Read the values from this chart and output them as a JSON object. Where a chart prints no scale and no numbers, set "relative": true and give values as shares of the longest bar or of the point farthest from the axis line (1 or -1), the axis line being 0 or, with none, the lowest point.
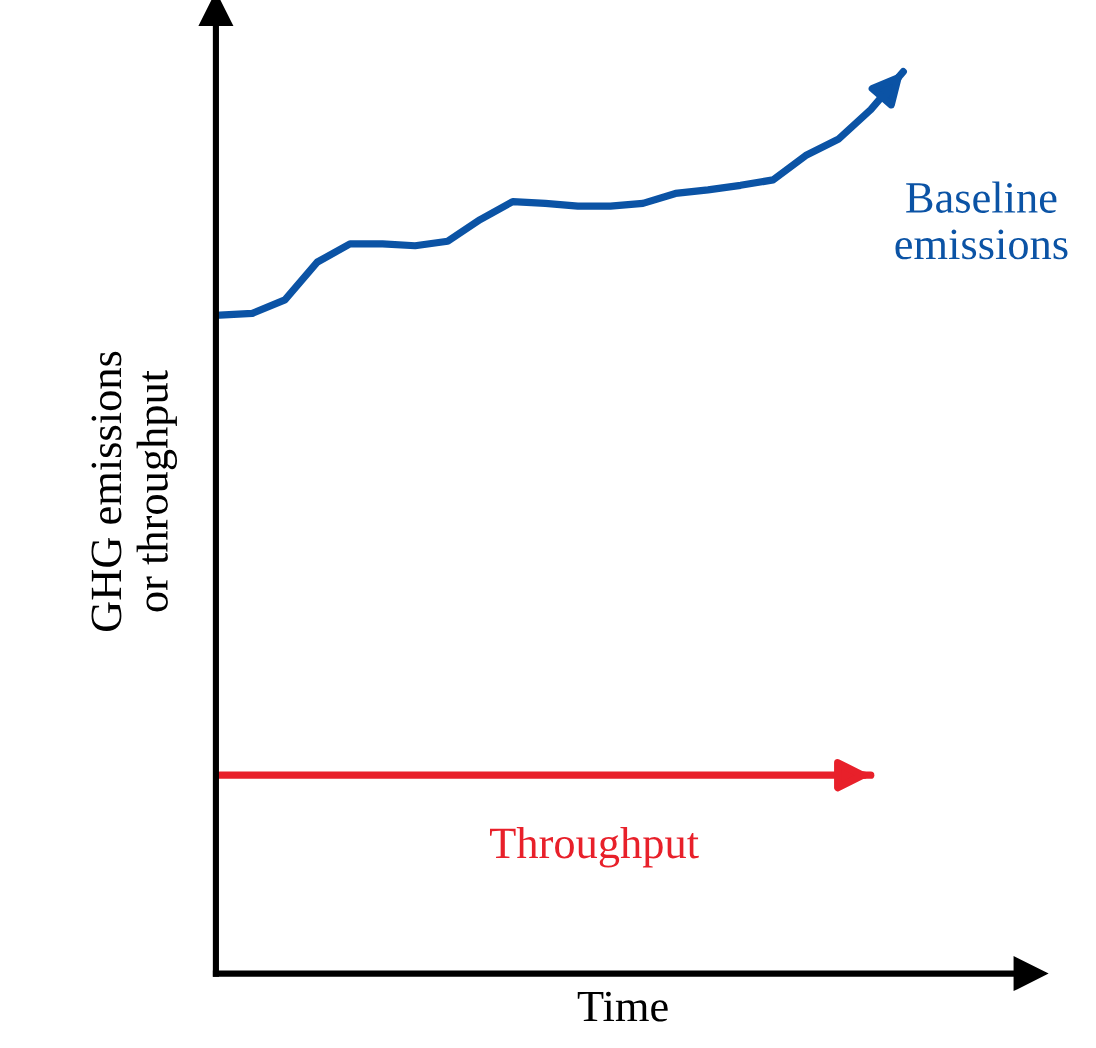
{
  "chart_data": {
    "type": "line",
    "relative": true,
    "xlabel": "Time",
    "ylabel": "GHG emissions\nor throughput",
    "legend": false,
    "marker": "none",
    "line_style": "solid",
    "categories": [
      null,
      null,
      null,
      null,
      null,
      null,
      null,
      null,
      null,
      null,
      null,
      null,
      null,
      null,
      null,
      null,
      null,
      null,
      null,
      null,
      null,
      null
    ],
    "series": [
      {
        "name": "Baseline\nemissions",
        "color": "#0b53a5",
        "values": [
          0.73,
          0.732,
          0.747,
          0.789,
          0.809,
          0.809,
          0.807,
          0.812,
          0.836,
          0.856,
          0.854,
          0.851,
          0.851,
          0.854,
          0.865,
          0.869,
          0.874,
          0.88,
          0.907,
          0.925,
          0.958,
          1
        ]
      },
      {
        "name": "Throughput",
        "color": "#e8202a",
        "values": [
          0.22,
          0.22,
          0.22,
          0.22,
          0.22,
          0.22,
          0.22,
          0.22,
          0.22,
          0.22,
          0.22,
          0.22,
          0.22,
          0.22,
          0.22,
          0.22,
          0.22,
          0.22,
          0.22,
          0.22,
          0.22,
          null
        ]
      }
    ]
  }
}
